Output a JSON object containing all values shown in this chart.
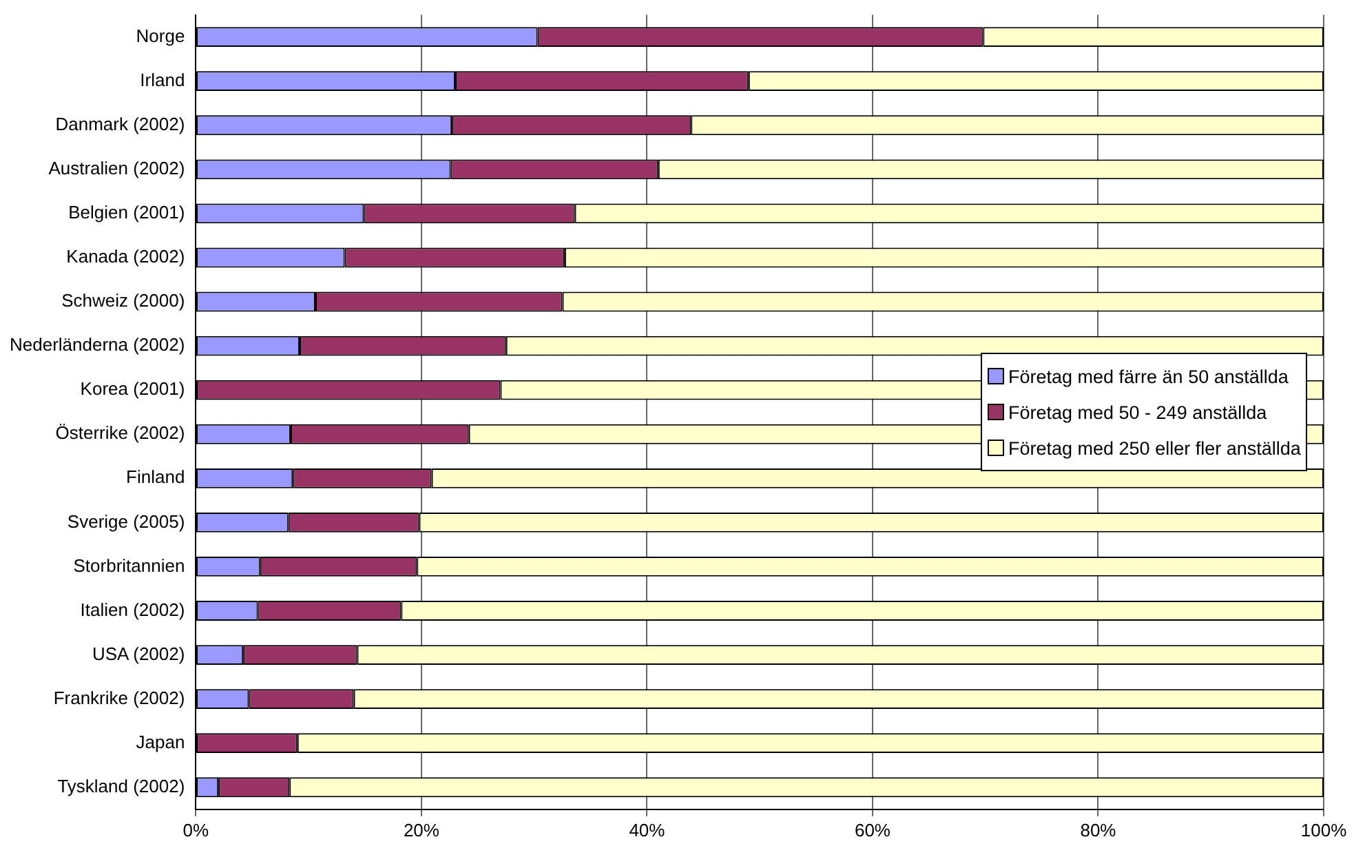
{
  "chart_data": {
    "type": "bar",
    "orientation": "horizontal",
    "stacked": true,
    "categories": [
      "Norge",
      "Irland",
      "Danmark (2002)",
      "Australien (2002)",
      "Belgien (2001)",
      "Kanada (2002)",
      "Schweiz (2000)",
      "Nederländerna (2002)",
      "Korea (2001)",
      "Österrike (2002)",
      "Finland",
      "Sverige (2005)",
      "Storbritannien",
      "Italien (2002)",
      "USA (2002)",
      "Frankrike (2002)",
      "Japan",
      "Tyskland (2002)"
    ],
    "series": [
      {
        "name": "Företag med färre än 50 anställda",
        "color": "#9999ff",
        "values": [
          30.3,
          23.0,
          22.7,
          22.6,
          14.9,
          13.2,
          10.6,
          9.2,
          0,
          8.4,
          8.6,
          8.2,
          5.7,
          5.5,
          4.2,
          4.7,
          0,
          2.0
        ]
      },
      {
        "name": "Företag med 50 - 249 anställda",
        "color": "#993366",
        "values": [
          39.5,
          26.0,
          21.2,
          18.4,
          18.7,
          19.5,
          21.9,
          18.3,
          27.0,
          15.8,
          12.3,
          11.6,
          13.9,
          12.7,
          10.1,
          9.3,
          9.0,
          6.3
        ]
      },
      {
        "name": "Företag med 250 eller fler anställda",
        "color": "#ffffcc",
        "values": [
          30.2,
          51.0,
          56.1,
          59.0,
          66.4,
          67.3,
          67.5,
          72.5,
          73.0,
          75.8,
          79.1,
          80.2,
          80.4,
          81.8,
          85.7,
          86.0,
          91.0,
          91.7
        ]
      }
    ],
    "xlim": [
      0,
      100
    ],
    "xticks": [
      {
        "value": 0,
        "label": "0%"
      },
      {
        "value": 20,
        "label": "20%"
      },
      {
        "value": 40,
        "label": "40%"
      },
      {
        "value": 60,
        "label": "60%"
      },
      {
        "value": 80,
        "label": "80%"
      },
      {
        "value": 100,
        "label": "100%"
      }
    ],
    "grid": "x",
    "legend": "right"
  }
}
